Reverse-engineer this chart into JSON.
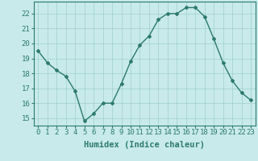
{
  "x": [
    0,
    1,
    2,
    3,
    4,
    5,
    6,
    7,
    8,
    9,
    10,
    11,
    12,
    13,
    14,
    15,
    16,
    17,
    18,
    19,
    20,
    21,
    22,
    23
  ],
  "y": [
    19.5,
    18.7,
    18.2,
    17.8,
    16.8,
    14.8,
    15.3,
    16.0,
    16.0,
    17.3,
    18.8,
    19.9,
    20.5,
    21.6,
    22.0,
    22.0,
    22.4,
    22.4,
    21.8,
    20.3,
    18.7,
    17.5,
    16.7,
    16.2
  ],
  "line_color": "#2d7a6e",
  "bg_color": "#c8eaea",
  "grid_color": "#a0cece",
  "xlabel": "Humidex (Indice chaleur)",
  "xlim": [
    -0.5,
    23.5
  ],
  "ylim": [
    14.5,
    22.8
  ],
  "yticks": [
    15,
    16,
    17,
    18,
    19,
    20,
    21,
    22
  ],
  "xticks": [
    0,
    1,
    2,
    3,
    4,
    5,
    6,
    7,
    8,
    9,
    10,
    11,
    12,
    13,
    14,
    15,
    16,
    17,
    18,
    19,
    20,
    21,
    22,
    23
  ],
  "tick_label_fontsize": 6.5,
  "xlabel_fontsize": 7.5,
  "marker": "D",
  "marker_size": 2.0,
  "line_width": 1.0
}
